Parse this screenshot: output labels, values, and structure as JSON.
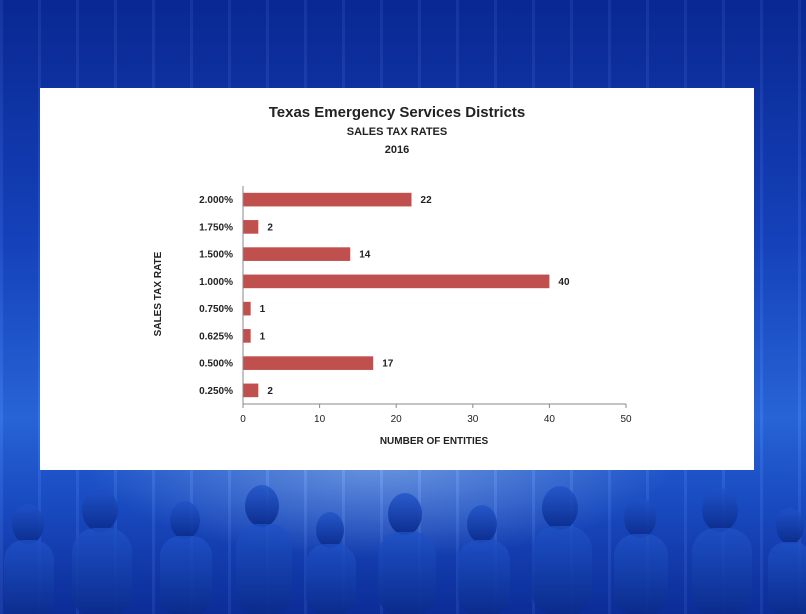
{
  "colors": {
    "bar": "#c0504d",
    "axis": "#888888"
  },
  "chart_data": {
    "type": "bar",
    "orientation": "horizontal",
    "title": "Texas Emergency Services Districts",
    "subtitle": [
      "SALES TAX RATES",
      "2016"
    ],
    "xlabel": "NUMBER OF ENTITIES",
    "ylabel": "SALES TAX RATE",
    "categories": [
      "2.000%",
      "1.750%",
      "1.500%",
      "1.000%",
      "0.750%",
      "0.625%",
      "0.500%",
      "0.250%"
    ],
    "values": [
      22,
      2,
      14,
      40,
      1,
      1,
      17,
      2
    ],
    "xlim": [
      0,
      50
    ],
    "xticks": [
      0,
      10,
      20,
      30,
      40,
      50
    ],
    "grid": false,
    "legend": "none"
  }
}
